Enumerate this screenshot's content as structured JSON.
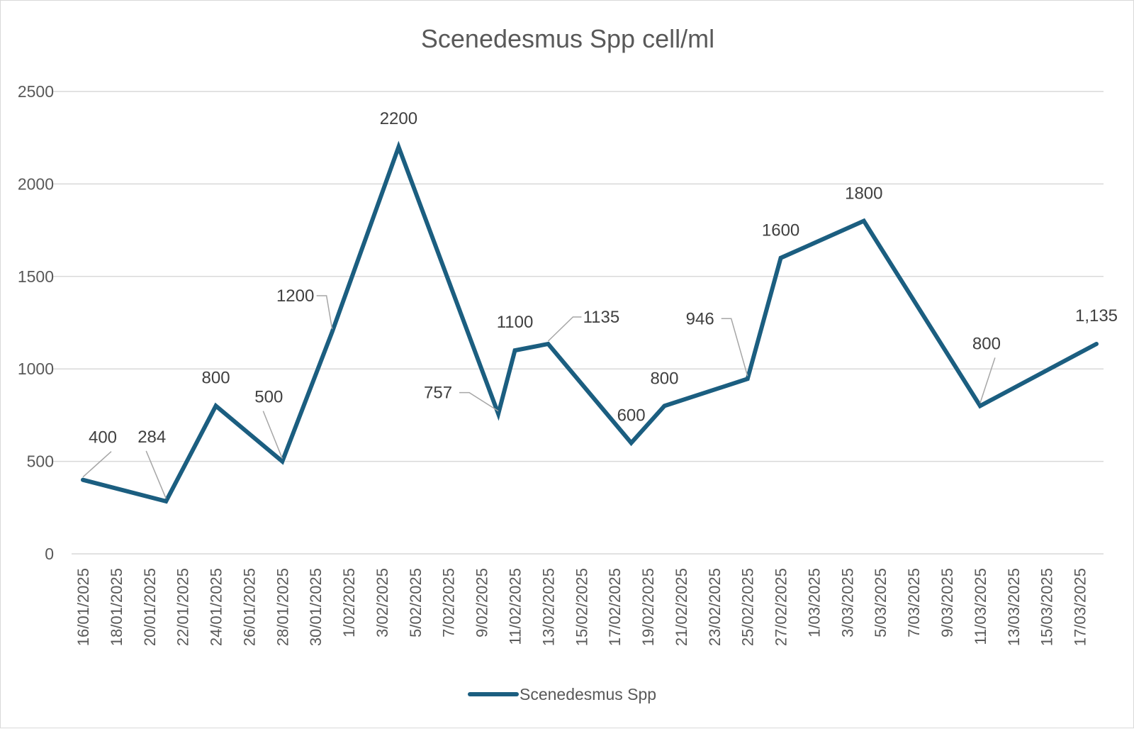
{
  "chart_data": {
    "type": "line",
    "title": "Scenedesmus Spp cell/ml",
    "xlabel": "",
    "ylabel": "",
    "ylim": [
      0,
      2500
    ],
    "yticks": [
      "0",
      "500",
      "1000",
      "1500",
      "2000",
      "2500"
    ],
    "x_range": [
      "16/01/2025",
      "18/03/2025"
    ],
    "x_tick_labels": [
      "16/01/2025",
      "18/01/2025",
      "20/01/2025",
      "22/01/2025",
      "24/01/2025",
      "26/01/2025",
      "28/01/2025",
      "30/01/2025",
      "1/02/2025",
      "3/02/2025",
      "5/02/2025",
      "7/02/2025",
      "9/02/2025",
      "11/02/2025",
      "13/02/2025",
      "15/02/2025",
      "17/02/2025",
      "19/02/2025",
      "21/02/2025",
      "23/02/2025",
      "25/02/2025",
      "27/02/2025",
      "1/03/2025",
      "3/03/2025",
      "5/03/2025",
      "7/03/2025",
      "9/03/2025",
      "11/03/2025",
      "13/03/2025",
      "15/03/2025",
      "17/03/2025"
    ],
    "grid": true,
    "legend_position": "bottom",
    "series": [
      {
        "name": "Scenedesmus Spp",
        "color": "#1b5e80",
        "points": [
          {
            "x": "16/01/2025",
            "y": 400,
            "label": "400"
          },
          {
            "x": "21/01/2025",
            "y": 284,
            "label": "284"
          },
          {
            "x": "24/01/2025",
            "y": 800,
            "label": "800"
          },
          {
            "x": "28/01/2025",
            "y": 500,
            "label": "500"
          },
          {
            "x": "31/01/2025",
            "y": 1200,
            "label": "1200"
          },
          {
            "x": "4/02/2025",
            "y": 2200,
            "label": "2200"
          },
          {
            "x": "10/02/2025",
            "y": 757,
            "label": "757"
          },
          {
            "x": "11/02/2025",
            "y": 1100,
            "label": "1100"
          },
          {
            "x": "13/02/2025",
            "y": 1135,
            "label": "1135"
          },
          {
            "x": "18/02/2025",
            "y": 600,
            "label": "600"
          },
          {
            "x": "20/02/2025",
            "y": 800,
            "label": "800"
          },
          {
            "x": "25/02/2025",
            "y": 946,
            "label": "946"
          },
          {
            "x": "27/02/2025",
            "y": 1600,
            "label": "1600"
          },
          {
            "x": "4/03/2025",
            "y": 1800,
            "label": "1800"
          },
          {
            "x": "11/03/2025",
            "y": 800,
            "label": "800"
          },
          {
            "x": "18/03/2025",
            "y": 1135,
            "label": "1,135"
          }
        ]
      }
    ]
  },
  "colors": {
    "gridline": "#d9d9d9",
    "leader": "#a6a6a6"
  }
}
